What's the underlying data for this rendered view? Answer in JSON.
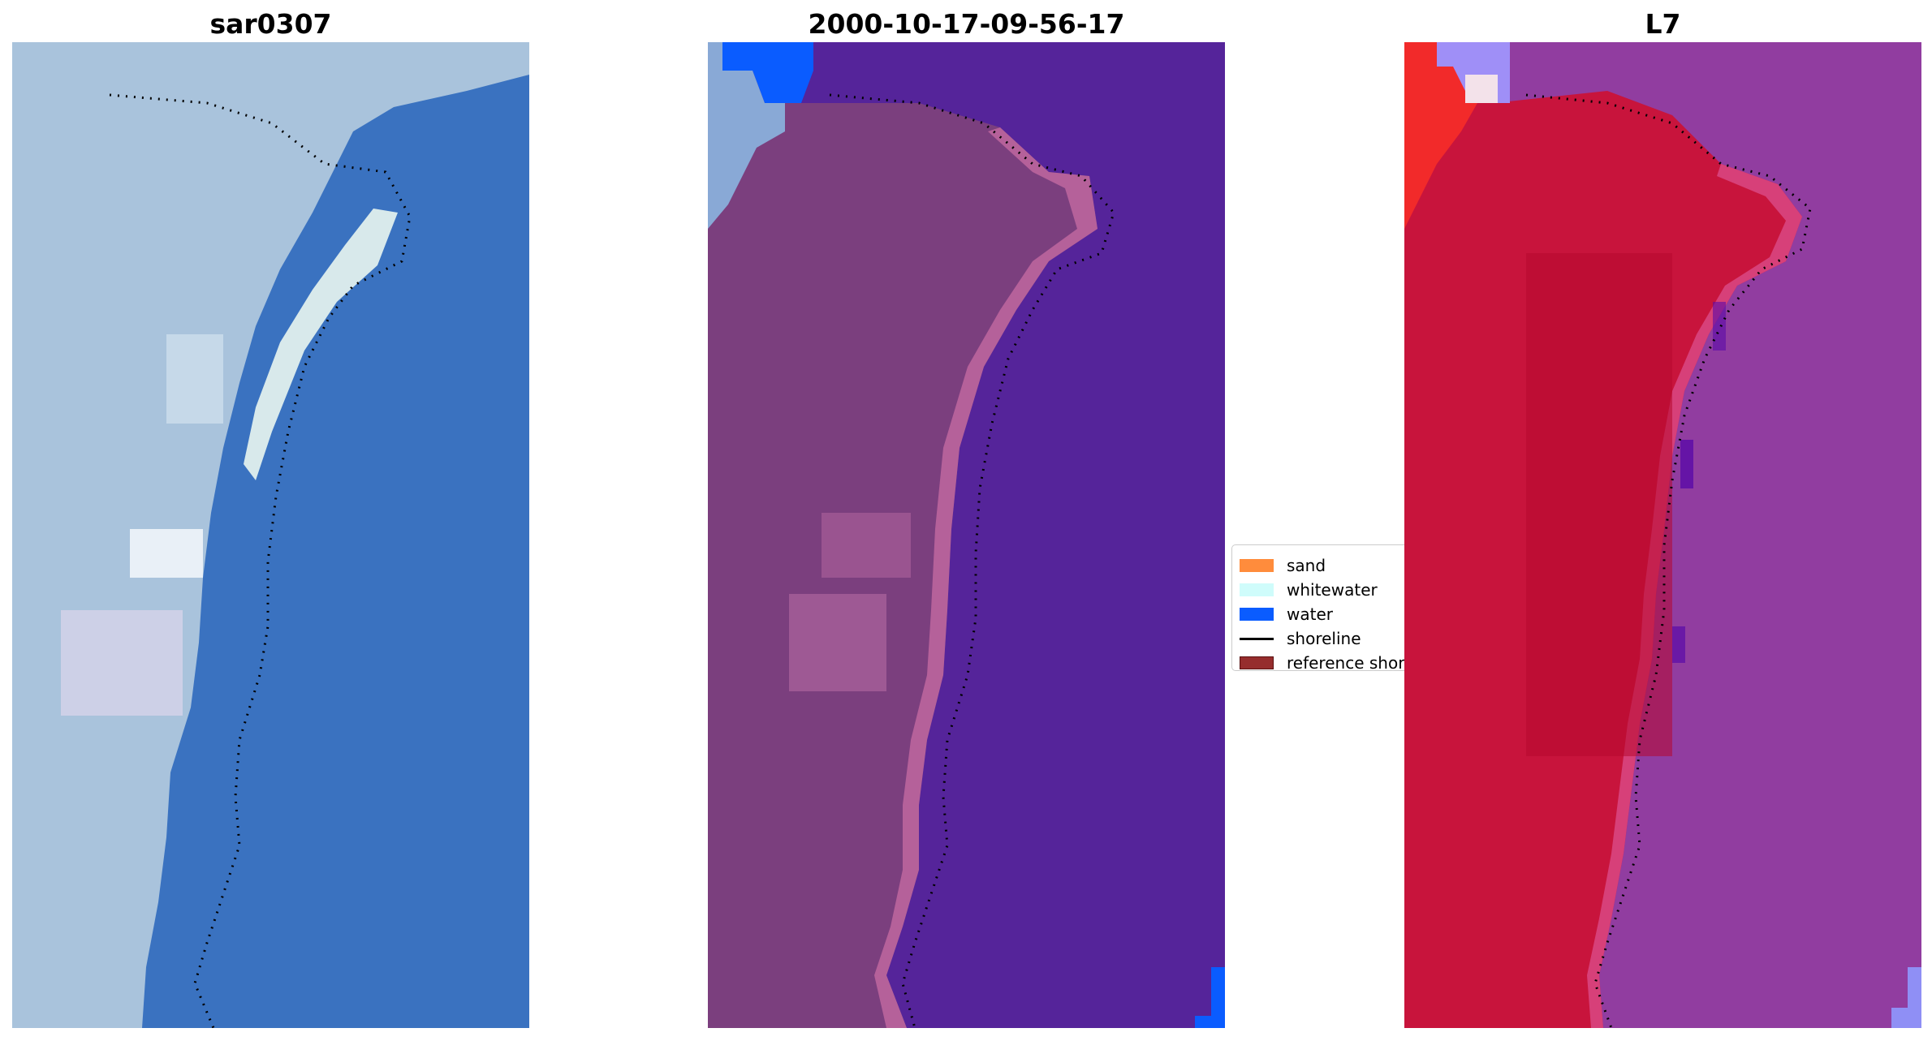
{
  "panels": [
    {
      "title": "sar0307",
      "image": "true-color satellite image of a sandy spit with blue water and dotted shoreline",
      "water_color": "#3a72c0",
      "land_color": "#a9c3dc",
      "beach_color": "#eaf6f0"
    },
    {
      "title": "2000-10-17-09-56-17",
      "image": "classified image: land in purple-pink, water in dark violet, dotted shoreline",
      "water_color": "#55249a",
      "land_color": "#7b3f7e",
      "beach_color": "#b5619a"
    },
    {
      "title": "L7",
      "image": "false-color (MNDWI) image: land in crimson, water in magenta-purple, dotted shoreline",
      "water_color": "#913da0",
      "land_color": "#c8143c",
      "beach_color": "#d84580"
    }
  ],
  "legend": {
    "items": [
      {
        "label": "sand",
        "color": "#ff8c3c",
        "kind": "patch"
      },
      {
        "label": "whitewater",
        "color": "#cffcfb",
        "kind": "patch"
      },
      {
        "label": "water",
        "color": "#0a5cff",
        "kind": "patch"
      },
      {
        "label": "shoreline",
        "color": "#000000",
        "kind": "line"
      },
      {
        "label": "reference shoreline",
        "color": "#962d2d",
        "kind": "patch"
      }
    ]
  }
}
